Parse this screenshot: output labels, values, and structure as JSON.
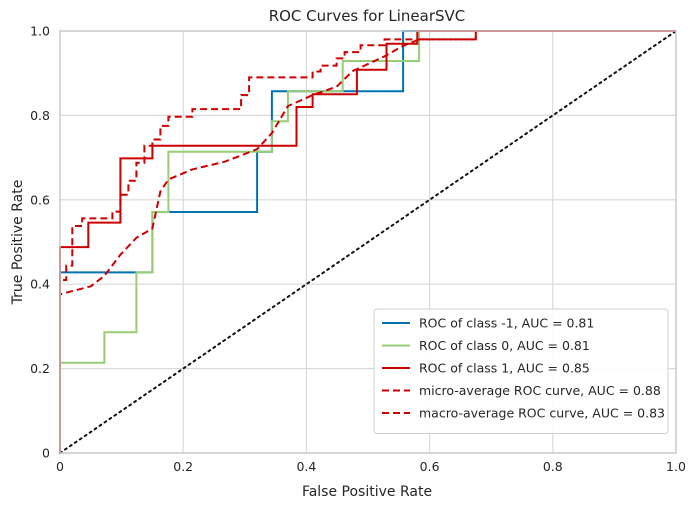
{
  "chart_data": {
    "type": "line",
    "title": "ROC Curves for LinearSVC",
    "xlabel": "False Positive Rate",
    "ylabel": "True Positive Rate",
    "xlim": [
      0,
      1
    ],
    "ylim": [
      0,
      1
    ],
    "xticks": [
      "0",
      "0.2",
      "0.4",
      "0.6",
      "0.8",
      "1.0"
    ],
    "yticks": [
      "0",
      "0.2",
      "0.4",
      "0.6",
      "0.8",
      "1.0"
    ],
    "grid": true,
    "legend_position": "lower-right",
    "series": [
      {
        "name": "ROC of class -1, AUC = 0.81",
        "color": "#0072b2",
        "style": "solid",
        "x": [
          0,
          0,
          0.15,
          0.15,
          0.32,
          0.32,
          0.344,
          0.344,
          0.557,
          0.557,
          0.57,
          1.0
        ],
        "y": [
          0,
          0.428,
          0.428,
          0.571,
          0.571,
          0.714,
          0.714,
          0.857,
          0.857,
          1.0,
          1.0,
          1.0
        ]
      },
      {
        "name": "ROC of class 0, AUC = 0.81",
        "color": "#99cc77",
        "style": "solid",
        "x": [
          0,
          0,
          0.072,
          0.072,
          0.124,
          0.124,
          0.15,
          0.15,
          0.176,
          0.176,
          0.344,
          0.344,
          0.37,
          0.37,
          0.459,
          0.459,
          0.557,
          0.557,
          0.583,
          0.583,
          1.0
        ],
        "y": [
          0,
          0.214,
          0.214,
          0.286,
          0.286,
          0.428,
          0.428,
          0.571,
          0.571,
          0.714,
          0.714,
          0.786,
          0.786,
          0.857,
          0.857,
          0.929,
          0.929,
          0.929,
          0.929,
          1.0,
          1.0
        ]
      },
      {
        "name": "ROC of class 1, AUC = 0.85",
        "color": "#cc0000",
        "style": "solid",
        "x": [
          0,
          0,
          0.046,
          0.046,
          0.098,
          0.098,
          0.15,
          0.15,
          0.384,
          0.384,
          0.41,
          0.41,
          0.482,
          0.482,
          0.53,
          0.53,
          0.58,
          0.58,
          1.0
        ],
        "y": [
          0,
          0.488,
          0.488,
          0.546,
          0.546,
          0.698,
          0.698,
          0.728,
          0.728,
          0.82,
          0.82,
          0.85,
          0.85,
          0.908,
          0.908,
          0.97,
          0.97,
          1.0,
          1.0
        ]
      },
      {
        "name": "micro-average ROC curve, AUC = 0.88",
        "color": "#cc0000",
        "style": "dashed",
        "x": [
          0,
          0,
          0.01,
          0.01,
          0.02,
          0.02,
          0.036,
          0.036,
          0.085,
          0.085,
          0.098,
          0.098,
          0.111,
          0.111,
          0.124,
          0.124,
          0.137,
          0.137,
          0.15,
          0.15,
          0.163,
          0.163,
          0.176,
          0.176,
          0.189,
          0.189,
          0.215,
          0.215,
          0.241,
          0.241,
          0.294,
          0.294,
          0.307,
          0.307,
          0.32,
          0.32,
          0.41,
          0.41,
          0.423,
          0.423,
          0.436,
          0.436,
          0.449,
          0.449,
          0.462,
          0.462,
          0.475,
          0.475,
          0.488,
          0.488,
          0.501,
          0.501,
          0.514,
          0.514,
          0.527,
          0.527,
          0.54,
          0.54,
          0.57,
          0.57,
          0.583,
          0.583,
          0.675,
          0.675,
          1.0
        ],
        "y": [
          0,
          0.41,
          0.41,
          0.444,
          0.444,
          0.538,
          0.538,
          0.556,
          0.556,
          0.572,
          0.572,
          0.612,
          0.612,
          0.645,
          0.645,
          0.688,
          0.688,
          0.728,
          0.728,
          0.743,
          0.743,
          0.775,
          0.775,
          0.797,
          0.797,
          0.797,
          0.797,
          0.815,
          0.815,
          0.815,
          0.815,
          0.848,
          0.848,
          0.89,
          0.89,
          0.89,
          0.89,
          0.904,
          0.904,
          0.918,
          0.918,
          0.918,
          0.918,
          0.935,
          0.935,
          0.95,
          0.95,
          0.95,
          0.95,
          0.966,
          0.966,
          0.966,
          0.966,
          0.966,
          0.966,
          0.98,
          0.98,
          0.98,
          0.98,
          0.98,
          0.98,
          0.98,
          0.98,
          1.0,
          1.0
        ]
      },
      {
        "name": "macro-average ROC curve, AUC = 0.83",
        "color": "#cc0000",
        "style": "dashed",
        "x": [
          0,
          0,
          0.05,
          0.072,
          0.098,
          0.124,
          0.15,
          0.163,
          0.176,
          0.215,
          0.267,
          0.32,
          0.344,
          0.37,
          0.41,
          0.449,
          0.475,
          0.527,
          0.557,
          0.583,
          0.675,
          0.675,
          1.0
        ],
        "y": [
          0,
          0.376,
          0.395,
          0.42,
          0.47,
          0.51,
          0.532,
          0.62,
          0.648,
          0.672,
          0.69,
          0.72,
          0.758,
          0.822,
          0.848,
          0.868,
          0.905,
          0.94,
          0.965,
          0.98,
          0.98,
          1.0,
          1.0
        ]
      },
      {
        "name": "",
        "color": "#111111",
        "style": "dotted",
        "x": [
          0,
          1
        ],
        "y": [
          0,
          1
        ]
      }
    ]
  }
}
